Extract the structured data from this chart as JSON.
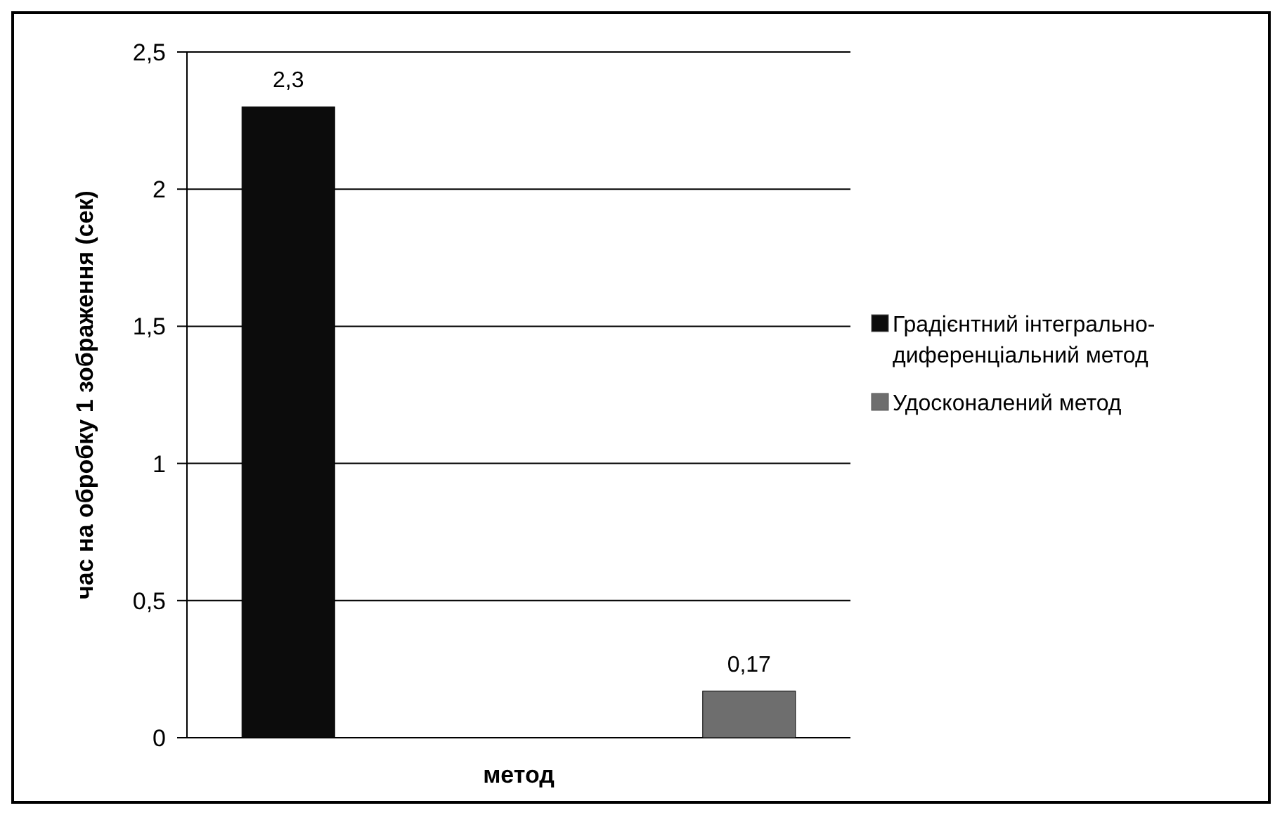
{
  "chart_data": {
    "type": "bar",
    "xlabel": "метод",
    "ylabel": "час на обробку 1 зображення (сек)",
    "categories": [
      null
    ],
    "series": [
      {
        "name": "Градієнтний інтегрально-диференціальний метод",
        "color": "#0c0c0c",
        "values": [
          2.3
        ],
        "value_labels": [
          "2,3"
        ]
      },
      {
        "name": "Удосконалений метод",
        "color": "#6e6e6e",
        "values": [
          0.17
        ],
        "value_labels": [
          "0,17"
        ]
      }
    ],
    "ylim": [
      0,
      2.5
    ],
    "yticks": [
      0,
      {
        "value": 0.5,
        "label": "0,5"
      },
      1,
      {
        "value": 1.5,
        "label": "1,5"
      },
      2,
      {
        "value": 2.5,
        "label": "2,5"
      }
    ],
    "grid": "y",
    "legend": "right"
  }
}
